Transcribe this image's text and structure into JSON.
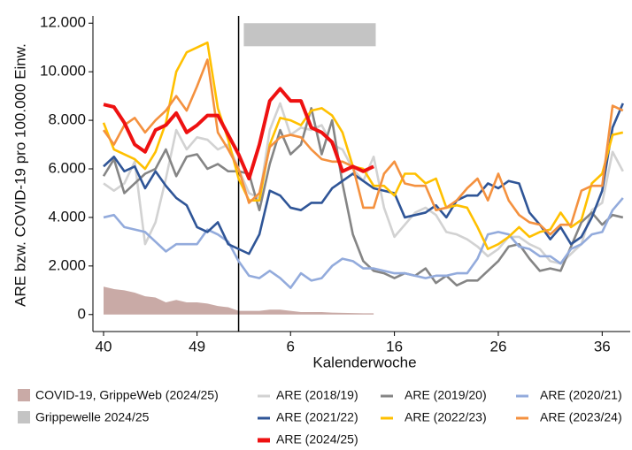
{
  "chart_data": {
    "type": "line",
    "y_label": "ARE bzw. COVID-19 pro 100.000 Einw.",
    "x_label": "Kalenderwoche",
    "categories": [
      "40",
      null,
      null,
      null,
      null,
      null,
      null,
      null,
      null,
      "49",
      null,
      null,
      null,
      null,
      null,
      null,
      null,
      null,
      "6",
      null,
      null,
      null,
      null,
      null,
      null,
      null,
      null,
      null,
      "16",
      null,
      null,
      null,
      null,
      null,
      null,
      null,
      null,
      null,
      "26",
      null,
      null,
      null,
      null,
      null,
      null,
      null,
      null,
      null,
      "36",
      null,
      null
    ],
    "ylim": [
      -700,
      12300
    ],
    "yticks": [
      0,
      {
        "value": 2000,
        "label": "2.000"
      },
      {
        "value": 4000,
        "label": "4.000"
      },
      {
        "value": 6000,
        "label": "6.000"
      },
      {
        "value": 8000,
        "label": "8.000"
      },
      {
        "value": 10000,
        "label": "10.000"
      },
      {
        "value": 12000,
        "label": "12.000"
      }
    ],
    "vline_x": 13,
    "covid_area": {
      "name": "COVID-19, GrippeWeb (2024/25)",
      "color": "#c9aaa6",
      "values": [
        1150,
        1050,
        1000,
        900,
        750,
        700,
        500,
        600,
        500,
        500,
        450,
        350,
        300,
        150,
        150,
        150,
        200,
        200,
        150,
        100,
        100,
        100,
        80,
        70,
        60,
        50,
        50
      ]
    },
    "flu_wave": {
      "name": "Grippewelle 2024/25",
      "color": "#c4c4c4",
      "x": [
        13.5,
        26.2
      ],
      "y": [
        11050,
        12000
      ]
    },
    "series": [
      {
        "name": "ARE (2018/19)",
        "color": "#d2d2d2",
        "values": [
          5400,
          5100,
          5400,
          6300,
          2900,
          3800,
          5600,
          7600,
          6800,
          7300,
          7200,
          6800,
          7000,
          6000,
          5000,
          4800,
          7600,
          8700,
          7400,
          7700,
          7600,
          7800,
          7000,
          6800,
          6000,
          5500,
          6500,
          4400,
          3200,
          3700,
          4200,
          4400,
          4100,
          3400,
          3300,
          3100,
          2800,
          2400,
          2700,
          3200,
          3200,
          2900,
          2700,
          2200,
          2100,
          2500,
          2900,
          4300,
          4600,
          6700,
          5900
        ]
      },
      {
        "name": "ARE (2019/20)",
        "color": "#858585",
        "values": [
          5700,
          6400,
          5000,
          5400,
          5800,
          6000,
          6800,
          5700,
          6500,
          6600,
          6000,
          6200,
          5900,
          5900,
          5800,
          4300,
          6200,
          7600,
          6600,
          7000,
          8500,
          6600,
          8000,
          5400,
          3300,
          2200,
          1800,
          1700,
          1500,
          1700,
          1600,
          1900,
          1300,
          1600,
          1200,
          1400,
          1400,
          1800,
          2200,
          2800,
          2900,
          2300,
          1800,
          1900,
          1800,
          2800,
          3800,
          4200,
          3700,
          4100,
          4000
        ]
      },
      {
        "name": "ARE (2020/21)",
        "color": "#93abdc",
        "values": [
          4000,
          4100,
          3600,
          3500,
          3400,
          3000,
          2600,
          2900,
          2900,
          2900,
          3500,
          3300,
          3000,
          2200,
          1600,
          1500,
          1800,
          1500,
          1100,
          1700,
          1400,
          1500,
          2000,
          2300,
          2200,
          1900,
          1900,
          1800,
          1700,
          1700,
          1600,
          1500,
          1600,
          1600,
          1700,
          1700,
          2300,
          3300,
          3400,
          3300,
          2800,
          2700,
          2400,
          2400,
          2100,
          2700,
          2900,
          3300,
          3400,
          4300,
          4800
        ]
      },
      {
        "name": "ARE (2021/22)",
        "color": "#2f5597",
        "values": [
          6100,
          6500,
          5900,
          6100,
          5200,
          5900,
          5300,
          4800,
          4500,
          3600,
          3400,
          3800,
          2900,
          2700,
          2500,
          3300,
          5100,
          4900,
          4400,
          4300,
          4600,
          4600,
          5200,
          5500,
          5800,
          5500,
          5200,
          5100,
          5000,
          4000,
          4100,
          4200,
          4500,
          4000,
          4700,
          4900,
          4900,
          5400,
          5200,
          5500,
          5400,
          4200,
          3700,
          3100,
          3600,
          2900,
          3200,
          4000,
          5100,
          7700,
          8700
        ]
      },
      {
        "name": "ARE (2022/23)",
        "color": "#ffc000",
        "values": [
          7900,
          6800,
          6600,
          6400,
          6000,
          6700,
          7900,
          10000,
          10800,
          11000,
          11200,
          8500,
          7200,
          5600,
          4700,
          4700,
          7000,
          8100,
          8000,
          7800,
          8400,
          8500,
          8200,
          7500,
          6100,
          6000,
          5300,
          5300,
          4900,
          5800,
          5800,
          5400,
          5600,
          4400,
          4500,
          4400,
          3600,
          2700,
          2900,
          3200,
          3600,
          3200,
          3400,
          3500,
          4200,
          3600,
          3900,
          5400,
          5800,
          7400,
          7500
        ]
      },
      {
        "name": "ARE (2023/24)",
        "color": "#f4913f",
        "values": [
          7600,
          7000,
          7800,
          8100,
          7500,
          8000,
          8400,
          9000,
          8400,
          9400,
          10500,
          7500,
          6800,
          6000,
          4600,
          5000,
          6900,
          7300,
          7400,
          7300,
          6800,
          6400,
          6300,
          6300,
          6100,
          4400,
          4400,
          5800,
          6300,
          5400,
          5300,
          5300,
          4300,
          4400,
          4700,
          5200,
          5600,
          4700,
          5800,
          4700,
          4100,
          3800,
          3700,
          3300,
          3700,
          3700,
          5100,
          5300,
          5300,
          8600,
          8400
        ]
      },
      {
        "name": "ARE (2024/25)",
        "color": "#ee1111",
        "values": [
          8650,
          8550,
          7900,
          7000,
          6700,
          7600,
          7800,
          8300,
          7500,
          7800,
          8200,
          8200,
          7400,
          6600,
          5600,
          7000,
          8800,
          9300,
          8800,
          8800,
          7700,
          7500,
          7100,
          5900,
          6100,
          5900,
          6100,
          null,
          null,
          null,
          null,
          null,
          null,
          null,
          null,
          null,
          null,
          null,
          null,
          null,
          null,
          null,
          null,
          null,
          null,
          null,
          null,
          null,
          null,
          null,
          null
        ]
      }
    ]
  }
}
